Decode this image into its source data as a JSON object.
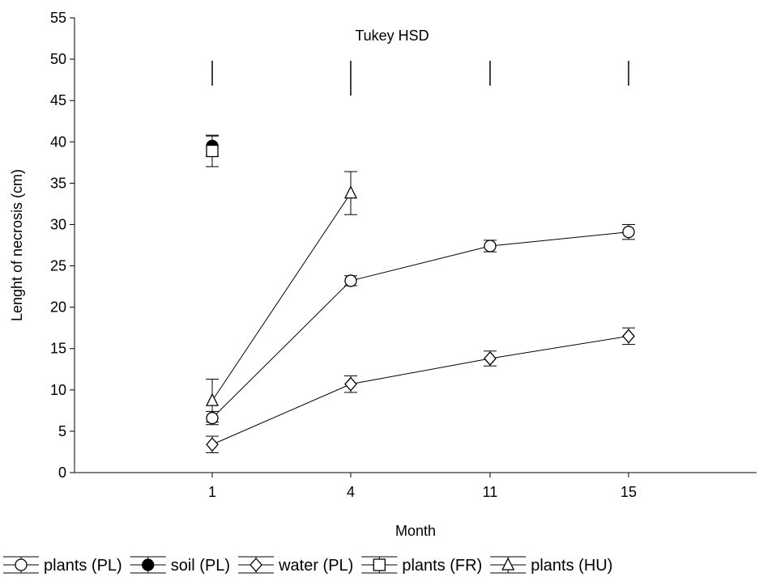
{
  "chart_data": {
    "type": "line",
    "title": "",
    "xlabel": "Month",
    "ylabel": "Lenght of necrosis (cm)",
    "x_categories": [
      "1",
      "4",
      "11",
      "15"
    ],
    "ylim": [
      0,
      55
    ],
    "y_ticks": [
      0,
      5,
      10,
      15,
      20,
      25,
      30,
      35,
      40,
      45,
      50,
      55
    ],
    "annotation": "Tukey HSD",
    "tukey_hsd_bars": [
      {
        "x": "1",
        "from": 46.8,
        "to": 49.8
      },
      {
        "x": "4",
        "from": 45.6,
        "to": 49.8
      },
      {
        "x": "11",
        "from": 46.8,
        "to": 49.8
      },
      {
        "x": "15",
        "from": 46.8,
        "to": 49.8
      }
    ],
    "series": [
      {
        "name": "plants (PL)",
        "marker": "circle-open",
        "connected": true,
        "points": [
          {
            "x": "1",
            "y": 6.6,
            "err": 0.8
          },
          {
            "x": "4",
            "y": 23.2,
            "err": 0.6
          },
          {
            "x": "11",
            "y": 27.4,
            "err": 0.7
          },
          {
            "x": "15",
            "y": 29.1,
            "err": 0.9
          }
        ]
      },
      {
        "name": "soil (PL)",
        "marker": "circle-filled",
        "connected": false,
        "points": [
          {
            "x": "1",
            "y": 39.5,
            "err": 1.2
          }
        ]
      },
      {
        "name": "water (PL)",
        "marker": "diamond-open",
        "connected": true,
        "points": [
          {
            "x": "1",
            "y": 3.4,
            "err": 1.0
          },
          {
            "x": "4",
            "y": 10.7,
            "err": 1.0
          },
          {
            "x": "11",
            "y": 13.8,
            "err": 0.9
          },
          {
            "x": "15",
            "y": 16.5,
            "err": 1.0
          }
        ]
      },
      {
        "name": "plants (FR)",
        "marker": "square-open",
        "connected": false,
        "points": [
          {
            "x": "1",
            "y": 38.9,
            "err": 1.9
          }
        ]
      },
      {
        "name": "plants (HU)",
        "marker": "triangle-open",
        "connected": true,
        "points": [
          {
            "x": "1",
            "y": 8.7,
            "err": 2.6
          },
          {
            "x": "4",
            "y": 33.8,
            "err": 2.6
          }
        ]
      }
    ],
    "grid": false,
    "legend_position": "bottom"
  }
}
